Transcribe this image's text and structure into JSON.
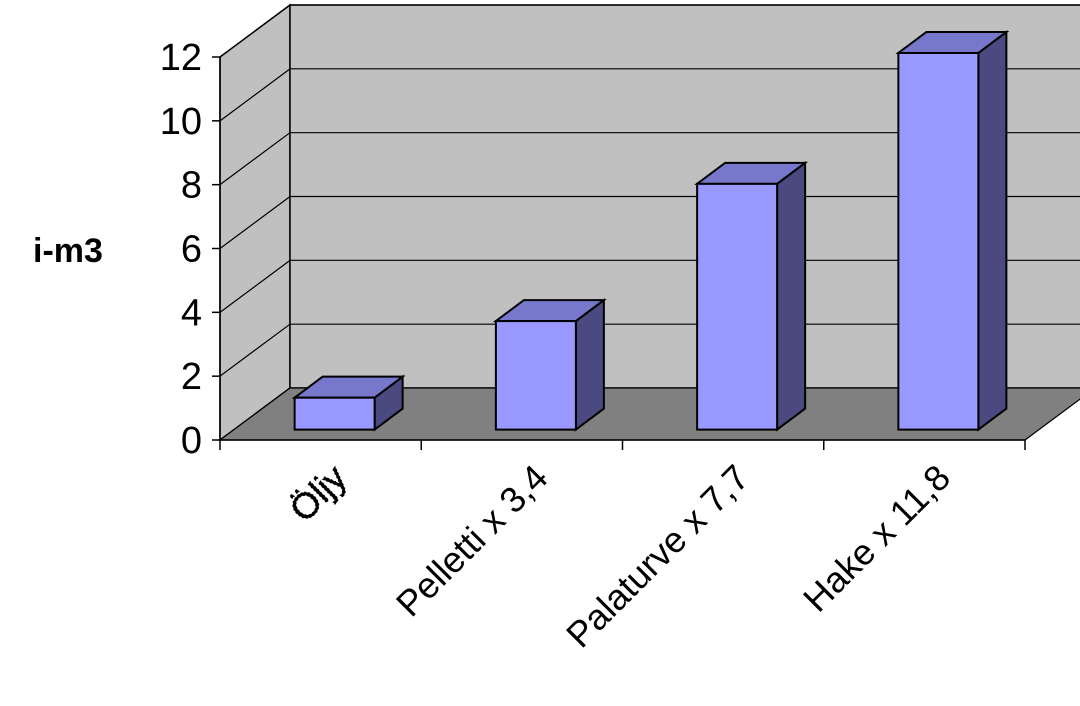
{
  "chart_data": {
    "type": "bar",
    "variant": "3d-column",
    "title": "",
    "xlabel": "",
    "ylabel": "i-m3",
    "categories": [
      "Öljy",
      "Pelletti x 3,4",
      "Palaturve x 7,7",
      "Hake x 11,8"
    ],
    "series": [
      {
        "values": [
          1,
          3.4,
          7.7,
          11.8
        ]
      }
    ],
    "ylim": [
      0,
      12
    ],
    "yticks": [
      "0",
      "2",
      "4",
      "6",
      "8",
      "10",
      "12"
    ],
    "grid": true,
    "legend": "none",
    "colors": {
      "bar_front": "#9999ff",
      "bar_top": "#7777cc",
      "bar_side": "#4a4a80",
      "back_wall": "#c0c0c0",
      "side_wall": "#c0c0c0",
      "floor": "#808080"
    }
  }
}
